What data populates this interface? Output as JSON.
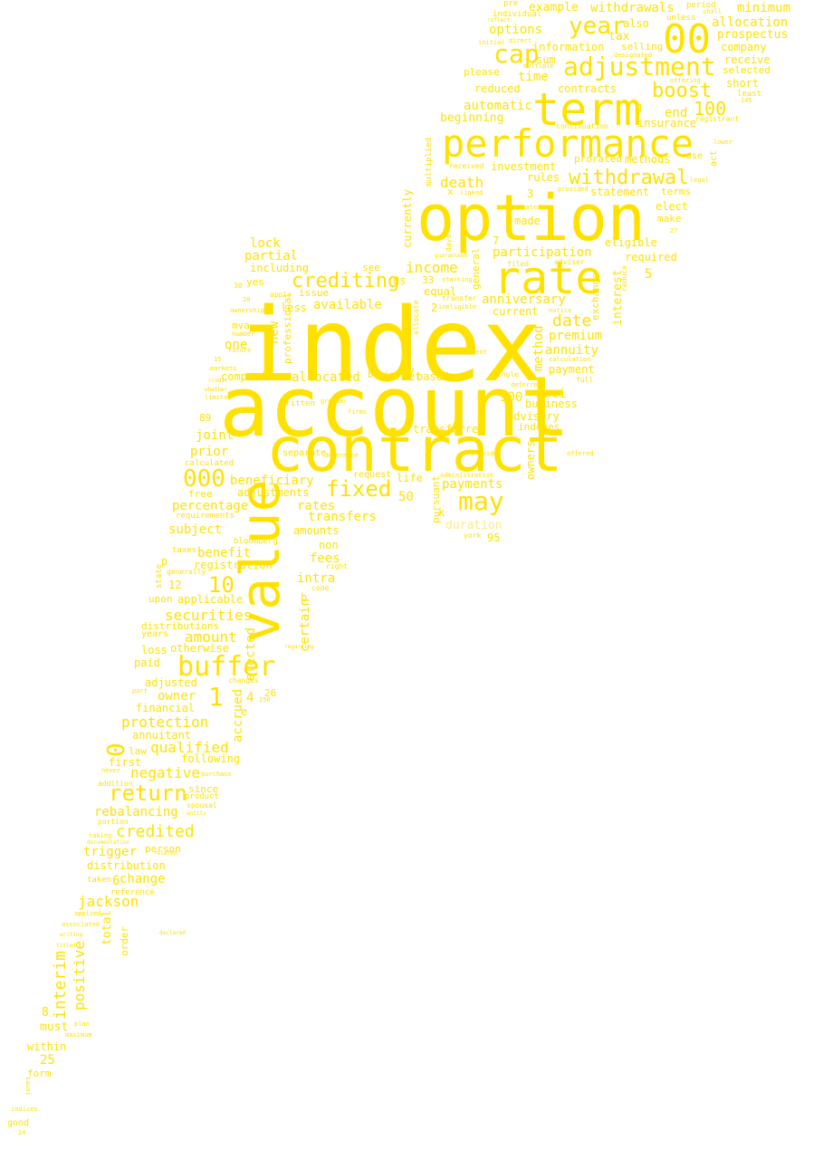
{
  "colors": {
    "background": "#ffffff",
    "word": "#ffe100",
    "word_pale": "#ffe98a"
  },
  "words": {
    "index": "index",
    "account": "account",
    "contract": "contract",
    "option": "option",
    "performance": "performance",
    "rate": "rate",
    "term": "term",
    "value": "value",
    "adjustment": "adjustment",
    "d00a": "00",
    "year": "year",
    "cap": "cap",
    "withdrawal": "withdrawal",
    "buffer": "buffer",
    "may": "may",
    "fixed": "fixed",
    "crediting": "crediting",
    "boost": "boost",
    "return": "return",
    "credited": "credited",
    "jackson": "jackson",
    "interim": "interim",
    "positive": "positive",
    "d000": "000",
    "d10": "10",
    "d1": "1",
    "d0": "0",
    "d100": "100",
    "income": "income",
    "date": "date",
    "death": "death",
    "anniversary": "anniversary",
    "participation": "participation",
    "annuity": "annuity",
    "premium": "premium",
    "payments": "payments",
    "amount": "amount",
    "securities": "securities",
    "protection": "protection",
    "qualified": "qualified",
    "negative": "negative",
    "rebalancing": "rebalancing",
    "trigger": "trigger",
    "distribution": "distribution",
    "change": "change",
    "accrued": "accrued",
    "elected": "elected",
    "owner": "owner",
    "beneficiary": "beneficiary",
    "adjustments": "adjustments",
    "percentage": "percentage",
    "subject": "subject",
    "benefit": "benefit",
    "registration": "registration",
    "applicable": "applicable",
    "distributions": "distributions",
    "otherwise": "otherwise",
    "adjusted": "adjusted",
    "financial": "financial",
    "annuitant": "annuitant",
    "lock": "lock",
    "partial": "partial",
    "including": "including",
    "available": "available",
    "allocated": "allocated",
    "companies": "companies",
    "prior": "prior",
    "joint": "joint",
    "rates": "rates",
    "transfers": "transfers",
    "amounts": "amounts",
    "fees": "fees",
    "non": "non",
    "intra": "intra",
    "certain": "certain",
    "market": "market",
    "equal": "equal",
    "based": "based",
    "transferred": "transferred",
    "life": "life",
    "request": "request",
    "pursuant": "pursuant",
    "duration": "duration",
    "d95": "95",
    "d500": "500",
    "msci": "msci",
    "business": "business",
    "advisory": "advisory",
    "indexes": "indexes",
    "owners": "owners",
    "method": "method",
    "payment": "payment",
    "interest": "interest",
    "exchange": "exchange",
    "required": "required",
    "eligible": "eligible",
    "make": "make",
    "elect": "elect",
    "terms": "terms",
    "statement": "statement",
    "investment": "investment",
    "rules": "rules",
    "prorated": "prorated",
    "methods": "methods",
    "insurance": "insurance",
    "end": "end",
    "automatic": "automatic",
    "beginning": "beginning",
    "reduced": "reduced",
    "contracts": "contracts",
    "time": "time",
    "please": "please",
    "sum": "sum",
    "information": "information",
    "selling": "selling",
    "options": "options",
    "tax": "tax",
    "also": "also",
    "example": "example",
    "withdrawals": "withdrawals",
    "minimum": "minimum",
    "allocation": "allocation",
    "prospectus": "prospectus",
    "company": "company",
    "receive": "receive",
    "selected": "selected",
    "short": "short",
    "current": "current",
    "currently": "currently",
    "general": "general",
    "made": "made",
    "d2": "2",
    "d3": "3",
    "d4": "4",
    "d5": "5",
    "d6": "6",
    "d7": "7",
    "d8": "8",
    "d12": "12",
    "d25": "25",
    "d26": "26",
    "d33": "33",
    "d50": "50",
    "d89": "89",
    "one": "one",
    "new": "new",
    "professional": "professional",
    "less": "less",
    "mva": "mva",
    "issue": "issue",
    "yes": "yes",
    "us": "us",
    "see": "see",
    "ny": "ny",
    "separate": "separate",
    "written": "written",
    "begin": "begin",
    "calculated": "calculated",
    "free": "free",
    "requirements": "requirements",
    "bloomberg": "bloomberg",
    "taxes": "taxes",
    "generally": "generally",
    "state": "state",
    "upon": "upon",
    "years": "years",
    "loss": "loss",
    "paid": "paid",
    "following": "following",
    "law": "law",
    "first": "first",
    "since": "since",
    "product": "product",
    "spousal": "spousal",
    "person": "person",
    "reference": "reference",
    "taken": "taken",
    "total": "total",
    "order": "order",
    "must": "must",
    "within": "within",
    "form": "form",
    "good": "good",
    "indices": "indices",
    "jones": "jones",
    "maximum": "maximum",
    "plan": "plan",
    "applied": "applied",
    "associated": "associated",
    "addition": "addition",
    "never": "never",
    "portion": "portion",
    "part": "part",
    "limited": "limited",
    "markets": "markets",
    "number": "number",
    "york": "york",
    "k": "k",
    "b": "b",
    "c": "c",
    "h": "h",
    "p": "p",
    "e": "e",
    "g": "g",
    "x": "x",
    "pre": "pre",
    "individual": "individual",
    "initial": "initial",
    "multiple": "multiple",
    "direct": "direct",
    "period": "period",
    "unless": "unless",
    "shall": "shall",
    "least": "least",
    "registrant": "registrant",
    "lower": "lower",
    "reduce": "reduce",
    "multiplied": "multiplied",
    "received": "received",
    "stated": "stated",
    "filed": "filed",
    "adviser": "adviser",
    "days": "days",
    "linked": "linked",
    "guaranteed": "guaranteed",
    "amendment": "amendment",
    "notice": "notice",
    "single": "single",
    "deferred": "deferred",
    "full": "full",
    "provided": "provided",
    "offered": "offered",
    "legal": "legal",
    "act": "act",
    "use": "use",
    "d27": "27",
    "ineligible": "ineligible",
    "transfer": "transfer",
    "starting": "starting",
    "effective": "effective",
    "allocate": "allocate",
    "firms": "firms",
    "greater": "greater",
    "code": "code",
    "right": "right",
    "within2": "determine",
    "apply": "apply",
    "ownership": "ownership",
    "administrative": "administrative",
    "provides": "provides",
    "changes": "changes",
    "d145": "145",
    "d20": "20",
    "d30": "30",
    "d15": "15",
    "d250": "250",
    "offering": "offering",
    "reflect": "reflect",
    "designated": "designated",
    "continuation": "continuation",
    "calculation": "calculation",
    "future": "future",
    "credit": "credit",
    "whether": "whether",
    "regarding": "regarding",
    "purchase": "purchase",
    "entity": "entity",
    "related": "related",
    "taking": "taking",
    "documentation": "documentation",
    "declared": "declared",
    "writing": "writing",
    "titled": "titled",
    "d24": "24"
  }
}
